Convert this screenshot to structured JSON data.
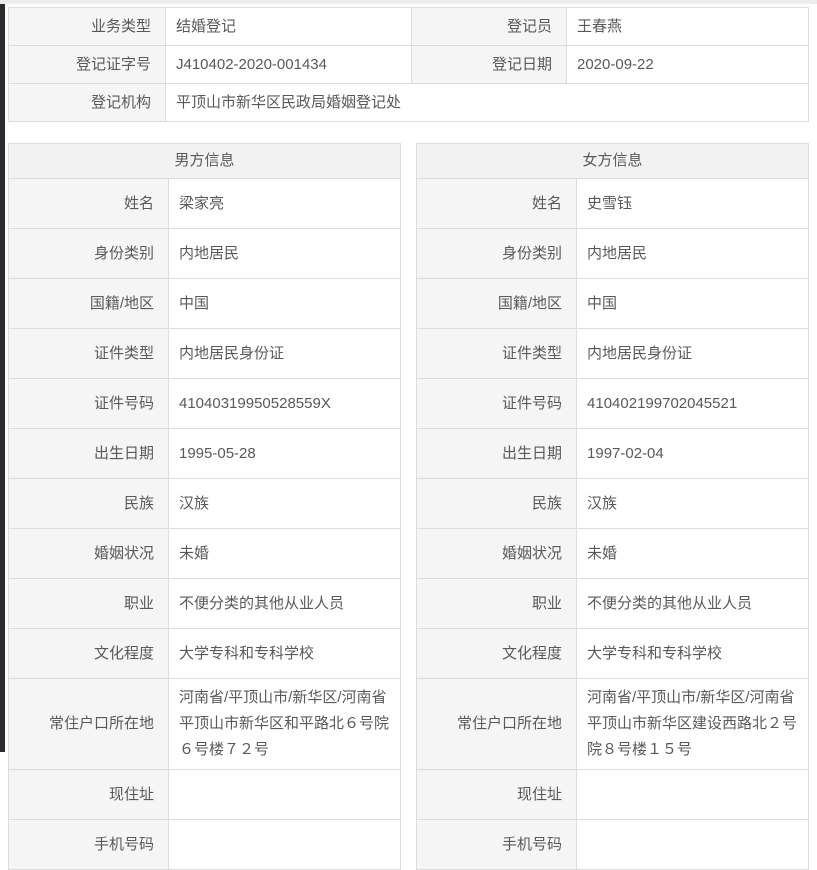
{
  "theme": {
    "label_cell_bg": "#f5f5f5",
    "header_cell_bg": "#f2f2f2",
    "border_color": "#dcdcdc",
    "text_color": "#595959",
    "edge_bar_color": "#2b2b30"
  },
  "registration": {
    "business_type_label": "业务类型",
    "business_type": "结婚登记",
    "registrar_label": "登记员",
    "registrar": "王春燕",
    "cert_no_label": "登记证字号",
    "cert_no": "J410402-2020-001434",
    "reg_date_label": "登记日期",
    "reg_date": "2020-09-22",
    "agency_label": "登记机构",
    "agency": "平顶山市新华区民政局婚姻登记处"
  },
  "male": {
    "title": "男方信息",
    "fields": [
      {
        "label": "姓名",
        "value": "梁家亮"
      },
      {
        "label": "身份类别",
        "value": "内地居民"
      },
      {
        "label": "国籍/地区",
        "value": "中国"
      },
      {
        "label": "证件类型",
        "value": "内地居民身份证"
      },
      {
        "label": "证件号码",
        "value": "41040319950528559X"
      },
      {
        "label": "出生日期",
        "value": "1995-05-28"
      },
      {
        "label": "民族",
        "value": "汉族"
      },
      {
        "label": "婚姻状况",
        "value": "未婚"
      },
      {
        "label": "职业",
        "value": "不便分类的其他从业人员"
      },
      {
        "label": "文化程度",
        "value": "大学专科和专科学校"
      },
      {
        "label": "常住户口所在地",
        "value": "河南省/平顶山市/新华区/河南省平顶山市新华区和平路北６号院６号楼７２号"
      },
      {
        "label": "现住址",
        "value": ""
      },
      {
        "label": "手机号码",
        "value": ""
      }
    ]
  },
  "female": {
    "title": "女方信息",
    "fields": [
      {
        "label": "姓名",
        "value": "史雪钰"
      },
      {
        "label": "身份类别",
        "value": "内地居民"
      },
      {
        "label": "国籍/地区",
        "value": "中国"
      },
      {
        "label": "证件类型",
        "value": "内地居民身份证"
      },
      {
        "label": "证件号码",
        "value": "410402199702045521"
      },
      {
        "label": "出生日期",
        "value": "1997-02-04"
      },
      {
        "label": "民族",
        "value": "汉族"
      },
      {
        "label": "婚姻状况",
        "value": "未婚"
      },
      {
        "label": "职业",
        "value": "不便分类的其他从业人员"
      },
      {
        "label": "文化程度",
        "value": "大学专科和专科学校"
      },
      {
        "label": "常住户口所在地",
        "value": "河南省/平顶山市/新华区/河南省平顶山市新华区建设西路北２号院８号楼１５号"
      },
      {
        "label": "现住址",
        "value": ""
      },
      {
        "label": "手机号码",
        "value": ""
      }
    ]
  }
}
